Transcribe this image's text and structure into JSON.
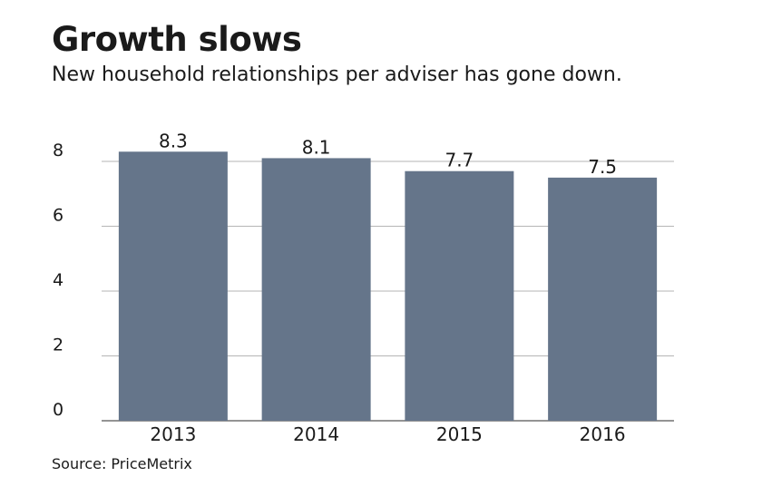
{
  "chart_data": {
    "type": "bar",
    "title": "Growth slows",
    "subtitle": "New household relationships per adviser has gone down.",
    "categories": [
      "2013",
      "2014",
      "2015",
      "2016"
    ],
    "values": [
      8.3,
      8.1,
      7.7,
      7.5
    ],
    "value_labels": [
      "8.3",
      "8.1",
      "7.7",
      "7.5"
    ],
    "y_ticks": [
      0,
      2,
      4,
      6,
      8
    ],
    "ylim": [
      0,
      8.6
    ],
    "grid": true,
    "bar_color": "#65758a",
    "grid_color": "#b5b5b5",
    "source": "Source: PriceMetrix"
  }
}
